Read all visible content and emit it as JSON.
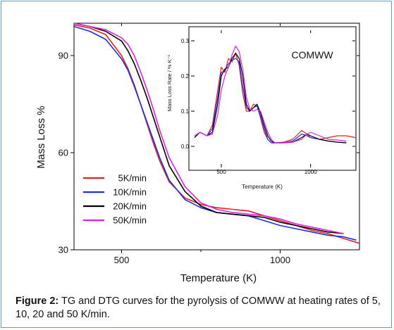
{
  "caption": {
    "label": "Figure 2:",
    "text": "TG and DTG curves for the pyrolysis of COMWW at heating rates of 5, 10, 20 and 50 K/min."
  },
  "chart_data": [
    {
      "type": "line",
      "xlabel": "Temperature (K)",
      "ylabel": "Mass Loss %",
      "xlim": [
        350,
        1250
      ],
      "ylim": [
        30,
        100
      ],
      "xticks": [
        500,
        1000
      ],
      "yticks": [
        30,
        60,
        90
      ],
      "grid": false,
      "legend_position": "bottom-left",
      "series": [
        {
          "name": "5K/min",
          "color": "#e8201a",
          "x": [
            350,
            400,
            450,
            500,
            520,
            540,
            560,
            580,
            600,
            620,
            650,
            700,
            750,
            800,
            850,
            900,
            950,
            1000,
            1050,
            1100,
            1150,
            1200,
            1250
          ],
          "y": [
            99.5,
            98.5,
            96.5,
            90,
            86,
            81,
            75,
            69,
            63,
            57.5,
            51,
            46,
            44,
            43,
            42.5,
            42,
            40.5,
            39,
            37.5,
            36,
            35,
            33.5,
            32
          ]
        },
        {
          "name": "10K/min",
          "color": "#1a2ee8",
          "x": [
            350,
            400,
            450,
            500,
            520,
            540,
            560,
            580,
            600,
            620,
            650,
            700,
            750,
            800,
            850,
            900,
            950,
            1000,
            1050,
            1100,
            1150,
            1200,
            1240
          ],
          "y": [
            99,
            97.5,
            95,
            89,
            85.5,
            80.5,
            75,
            69.5,
            64,
            58.5,
            51.5,
            45.5,
            43,
            41.5,
            41,
            40.5,
            39,
            37.5,
            36.5,
            35.5,
            34.5,
            34,
            33
          ]
        },
        {
          "name": "20K/min",
          "color": "#000000",
          "x": [
            350,
            400,
            450,
            500,
            520,
            540,
            560,
            580,
            600,
            620,
            650,
            700,
            750,
            800,
            850,
            900,
            950,
            1000,
            1050,
            1100,
            1150,
            1200
          ],
          "y": [
            100,
            99,
            97.5,
            94.5,
            91.5,
            87.5,
            82.5,
            77,
            71,
            65,
            56,
            48,
            43.5,
            41.5,
            41,
            40.5,
            40,
            38.5,
            37.5,
            36.5,
            35.5,
            35
          ]
        },
        {
          "name": "50K/min",
          "color": "#e020e0",
          "x": [
            350,
            400,
            450,
            500,
            520,
            540,
            560,
            580,
            600,
            620,
            650,
            700,
            750,
            800,
            850,
            900,
            950,
            1000,
            1050,
            1100,
            1150,
            1200
          ],
          "y": [
            100,
            99,
            98,
            95.5,
            93.5,
            90,
            85,
            79.5,
            73.5,
            67,
            58.5,
            49.5,
            44.5,
            42.5,
            41.5,
            41,
            40.5,
            39.5,
            38,
            37,
            36,
            35
          ]
        }
      ]
    },
    {
      "type": "line",
      "title": "COMWW",
      "xlabel": "Temperature (K)",
      "ylabel": "Mass Loss Rate / % K⁻¹",
      "xlim": [
        350,
        1250
      ],
      "ylim": [
        -0.05,
        0.33
      ],
      "xticks": [
        500,
        1000
      ],
      "yticks": [
        0.0,
        0.1,
        0.2,
        0.3
      ],
      "grid": false,
      "series": [
        {
          "color": "#e8201a",
          "x": [
            350,
            380,
            420,
            450,
            480,
            500,
            520,
            540,
            560,
            580,
            600,
            620,
            640,
            660,
            680,
            700,
            720,
            740,
            760,
            780,
            800,
            850,
            900,
            950,
            980,
            1000,
            1050,
            1100,
            1150,
            1200,
            1250
          ],
          "y": [
            0.025,
            0.04,
            0.03,
            0.06,
            0.16,
            0.225,
            0.21,
            0.25,
            0.24,
            0.265,
            0.23,
            0.15,
            0.1,
            0.1,
            0.12,
            0.115,
            0.08,
            0.04,
            0.02,
            0.01,
            0.01,
            0.012,
            0.02,
            0.045,
            0.035,
            0.025,
            0.02,
            0.025,
            0.03,
            0.03,
            0.025
          ]
        },
        {
          "color": "#1a2ee8",
          "x": [
            350,
            380,
            420,
            450,
            480,
            500,
            520,
            540,
            560,
            580,
            600,
            620,
            640,
            660,
            680,
            700,
            720,
            740,
            760,
            780,
            800,
            850,
            900,
            950,
            980,
            1000,
            1050,
            1100,
            1150,
            1200
          ],
          "y": [
            0.025,
            0.04,
            0.03,
            0.05,
            0.14,
            0.21,
            0.215,
            0.235,
            0.245,
            0.25,
            0.24,
            0.17,
            0.11,
            0.1,
            0.11,
            0.115,
            0.085,
            0.05,
            0.02,
            0.01,
            0.01,
            0.01,
            0.015,
            0.035,
            0.03,
            0.025,
            0.02,
            0.015,
            0.012,
            0.01
          ]
        },
        {
          "color": "#000000",
          "x": [
            350,
            380,
            420,
            450,
            480,
            500,
            520,
            540,
            560,
            580,
            600,
            620,
            640,
            660,
            680,
            700,
            720,
            740,
            760,
            780,
            800,
            850,
            900,
            950,
            980,
            1000,
            1050,
            1100,
            1150,
            1200
          ],
          "y": [
            0.025,
            0.04,
            0.03,
            0.04,
            0.12,
            0.2,
            0.22,
            0.225,
            0.25,
            0.265,
            0.25,
            0.2,
            0.12,
            0.1,
            0.11,
            0.12,
            0.095,
            0.06,
            0.03,
            0.015,
            0.01,
            0.01,
            0.012,
            0.025,
            0.035,
            0.03,
            0.02,
            0.015,
            0.012,
            0.01
          ]
        },
        {
          "color": "#e020e0",
          "x": [
            350,
            380,
            420,
            450,
            480,
            500,
            520,
            540,
            560,
            580,
            600,
            620,
            640,
            660,
            680,
            700,
            720,
            740,
            760,
            780,
            800,
            850,
            900,
            950,
            980,
            1000,
            1050,
            1100,
            1150,
            1200
          ],
          "y": [
            0.03,
            0.04,
            0.03,
            0.035,
            0.09,
            0.16,
            0.2,
            0.225,
            0.26,
            0.285,
            0.27,
            0.22,
            0.14,
            0.105,
            0.1,
            0.105,
            0.1,
            0.07,
            0.04,
            0.02,
            0.01,
            0.01,
            0.012,
            0.02,
            0.035,
            0.04,
            0.03,
            0.02,
            0.018,
            0.015
          ]
        }
      ]
    }
  ]
}
